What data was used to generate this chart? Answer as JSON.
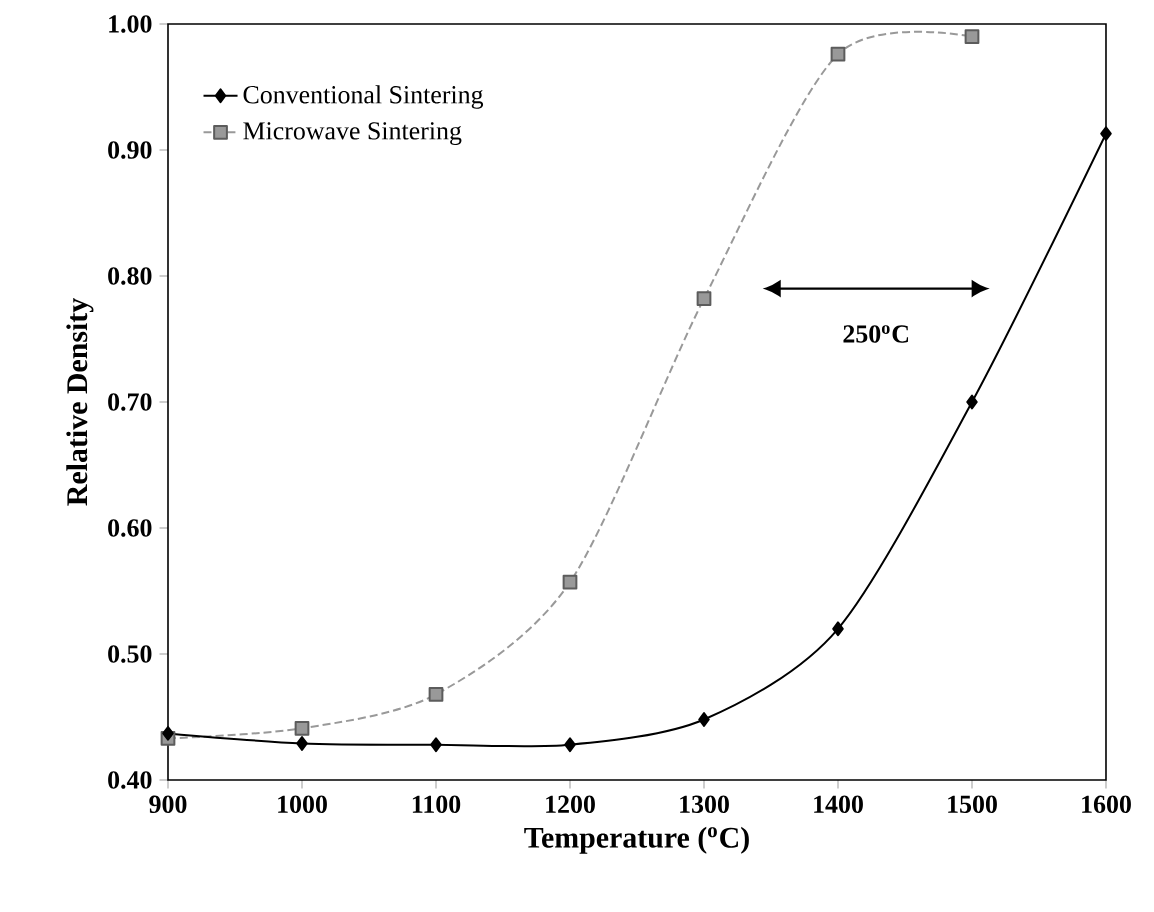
{
  "chart_data": {
    "type": "line",
    "xlabel": "Temperature ($^{o}$C)",
    "ylabel": "Relative Density",
    "x": [
      900,
      1000,
      1100,
      1200,
      1300,
      1400,
      1500,
      1600
    ],
    "series": [
      {
        "name": "Conventional Sintering",
        "color": "#000000",
        "marker": "diamond",
        "line_style": "solid",
        "values": [
          0.437,
          0.429,
          0.428,
          0.428,
          0.448,
          0.52,
          0.7,
          0.913
        ]
      },
      {
        "name": "Microwave Sintering",
        "color": "#999999",
        "marker": "square",
        "line_style": "dashed",
        "x": [
          900,
          1000,
          1100,
          1200,
          1300,
          1400,
          1500
        ],
        "values": [
          0.433,
          0.441,
          0.468,
          0.557,
          0.782,
          0.976,
          0.99
        ]
      }
    ],
    "xlim": [
      900,
      1600
    ],
    "xticks": [
      900,
      1000,
      1100,
      1200,
      1300,
      1400,
      1500,
      1600
    ],
    "ylim": [
      0.4,
      1.0
    ],
    "yticks": [
      {
        "value": 0.4,
        "label": "0.40"
      },
      {
        "value": 0.5,
        "label": "0.50"
      },
      {
        "value": 0.6,
        "label": "0.60"
      },
      {
        "value": 0.7,
        "label": "0.70"
      },
      {
        "value": 0.8,
        "label": "0.80"
      },
      {
        "value": 0.9,
        "label": "0.90"
      },
      {
        "value": 1.0,
        "label": "1.00"
      }
    ],
    "annotations": [
      "250$^{o}$C"
    ],
    "legend": "top left",
    "grid": false
  }
}
